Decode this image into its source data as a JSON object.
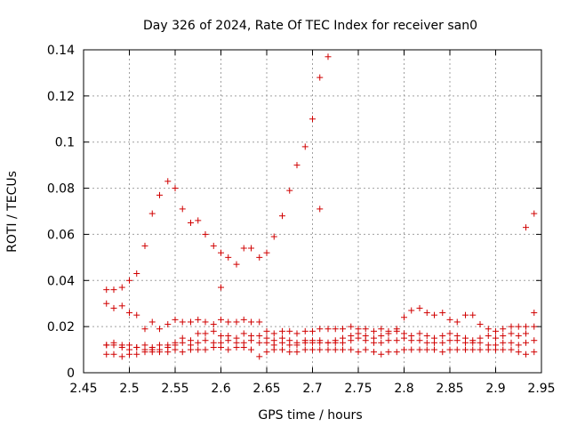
{
  "chart_data": {
    "type": "scatter",
    "title": "Day 326 of 2024, Rate Of TEC Index for receiver san0",
    "xlabel": "GPS time / hours",
    "ylabel": "ROTI / TECUs",
    "xlim": [
      2.45,
      2.95
    ],
    "ylim": [
      0,
      0.14
    ],
    "xticks": [
      "2.45",
      "2.5",
      "2.55",
      "2.6",
      "2.65",
      "2.7",
      "2.75",
      "2.8",
      "2.85",
      "2.9",
      "2.95"
    ],
    "yticks": [
      "0",
      "0.02",
      "0.04",
      "0.06",
      "0.08",
      "0.1",
      "0.12",
      "0.14"
    ],
    "grid": true,
    "marker": "+",
    "color": "#d00000",
    "series": [
      {
        "points": [
          [
            2.475,
            0.036
          ],
          [
            2.483,
            0.036
          ],
          [
            2.492,
            0.037
          ],
          [
            2.5,
            0.04
          ],
          [
            2.508,
            0.043
          ],
          [
            2.517,
            0.055
          ],
          [
            2.525,
            0.069
          ],
          [
            2.533,
            0.077
          ],
          [
            2.542,
            0.083
          ],
          [
            2.55,
            0.08
          ],
          [
            2.558,
            0.071
          ],
          [
            2.567,
            0.065
          ],
          [
            2.575,
            0.066
          ],
          [
            2.583,
            0.06
          ],
          [
            2.592,
            0.055
          ],
          [
            2.6,
            0.052
          ],
          [
            2.608,
            0.05
          ],
          [
            2.617,
            0.047
          ],
          [
            2.625,
            0.054
          ],
          [
            2.633,
            0.054
          ],
          [
            2.642,
            0.05
          ],
          [
            2.65,
            0.052
          ],
          [
            2.658,
            0.059
          ],
          [
            2.667,
            0.068
          ],
          [
            2.675,
            0.079
          ],
          [
            2.683,
            0.09
          ],
          [
            2.692,
            0.098
          ],
          [
            2.7,
            0.11
          ],
          [
            2.708,
            0.128
          ],
          [
            2.717,
            0.137
          ],
          [
            2.708,
            0.071
          ],
          [
            2.6,
            0.037
          ],
          [
            2.933,
            0.063
          ],
          [
            2.942,
            0.069
          ],
          [
            2.475,
            0.03
          ],
          [
            2.483,
            0.028
          ],
          [
            2.492,
            0.029
          ],
          [
            2.5,
            0.026
          ],
          [
            2.508,
            0.025
          ],
          [
            2.517,
            0.019
          ],
          [
            2.525,
            0.022
          ],
          [
            2.533,
            0.019
          ],
          [
            2.542,
            0.021
          ],
          [
            2.55,
            0.023
          ],
          [
            2.558,
            0.022
          ],
          [
            2.567,
            0.022
          ],
          [
            2.575,
            0.023
          ],
          [
            2.583,
            0.022
          ],
          [
            2.592,
            0.021
          ],
          [
            2.6,
            0.023
          ],
          [
            2.608,
            0.022
          ],
          [
            2.617,
            0.022
          ],
          [
            2.625,
            0.023
          ],
          [
            2.633,
            0.022
          ],
          [
            2.642,
            0.022
          ],
          [
            2.65,
            0.018
          ],
          [
            2.658,
            0.017
          ],
          [
            2.667,
            0.018
          ],
          [
            2.675,
            0.018
          ],
          [
            2.683,
            0.017
          ],
          [
            2.692,
            0.018
          ],
          [
            2.7,
            0.018
          ],
          [
            2.708,
            0.019
          ],
          [
            2.717,
            0.019
          ],
          [
            2.725,
            0.019
          ],
          [
            2.733,
            0.019
          ],
          [
            2.742,
            0.02
          ],
          [
            2.75,
            0.019
          ],
          [
            2.758,
            0.019
          ],
          [
            2.767,
            0.018
          ],
          [
            2.775,
            0.019
          ],
          [
            2.783,
            0.018
          ],
          [
            2.792,
            0.019
          ],
          [
            2.8,
            0.024
          ],
          [
            2.808,
            0.027
          ],
          [
            2.817,
            0.028
          ],
          [
            2.825,
            0.026
          ],
          [
            2.833,
            0.025
          ],
          [
            2.842,
            0.026
          ],
          [
            2.85,
            0.023
          ],
          [
            2.858,
            0.022
          ],
          [
            2.867,
            0.025
          ],
          [
            2.875,
            0.025
          ],
          [
            2.883,
            0.021
          ],
          [
            2.892,
            0.019
          ],
          [
            2.9,
            0.018
          ],
          [
            2.908,
            0.019
          ],
          [
            2.917,
            0.02
          ],
          [
            2.925,
            0.02
          ],
          [
            2.933,
            0.02
          ],
          [
            2.942,
            0.026
          ],
          [
            2.475,
            0.012
          ],
          [
            2.483,
            0.013
          ],
          [
            2.492,
            0.011
          ],
          [
            2.5,
            0.012
          ],
          [
            2.508,
            0.011
          ],
          [
            2.517,
            0.01
          ],
          [
            2.525,
            0.01
          ],
          [
            2.533,
            0.01
          ],
          [
            2.542,
            0.011
          ],
          [
            2.55,
            0.013
          ],
          [
            2.558,
            0.015
          ],
          [
            2.567,
            0.014
          ],
          [
            2.575,
            0.017
          ],
          [
            2.583,
            0.017
          ],
          [
            2.592,
            0.018
          ],
          [
            2.6,
            0.016
          ],
          [
            2.608,
            0.016
          ],
          [
            2.617,
            0.015
          ],
          [
            2.625,
            0.017
          ],
          [
            2.633,
            0.016
          ],
          [
            2.642,
            0.016
          ],
          [
            2.65,
            0.015
          ],
          [
            2.658,
            0.014
          ],
          [
            2.667,
            0.015
          ],
          [
            2.675,
            0.014
          ],
          [
            2.683,
            0.013
          ],
          [
            2.692,
            0.014
          ],
          [
            2.7,
            0.014
          ],
          [
            2.708,
            0.013
          ],
          [
            2.717,
            0.013
          ],
          [
            2.725,
            0.014
          ],
          [
            2.733,
            0.015
          ],
          [
            2.742,
            0.016
          ],
          [
            2.75,
            0.017
          ],
          [
            2.758,
            0.016
          ],
          [
            2.767,
            0.015
          ],
          [
            2.775,
            0.016
          ],
          [
            2.783,
            0.017
          ],
          [
            2.792,
            0.018
          ],
          [
            2.8,
            0.017
          ],
          [
            2.808,
            0.016
          ],
          [
            2.817,
            0.017
          ],
          [
            2.825,
            0.016
          ],
          [
            2.833,
            0.015
          ],
          [
            2.842,
            0.016
          ],
          [
            2.85,
            0.017
          ],
          [
            2.858,
            0.016
          ],
          [
            2.867,
            0.015
          ],
          [
            2.875,
            0.014
          ],
          [
            2.883,
            0.015
          ],
          [
            2.892,
            0.016
          ],
          [
            2.9,
            0.015
          ],
          [
            2.908,
            0.016
          ],
          [
            2.917,
            0.017
          ],
          [
            2.925,
            0.016
          ],
          [
            2.933,
            0.017
          ],
          [
            2.942,
            0.02
          ],
          [
            2.475,
            0.012
          ],
          [
            2.483,
            0.012
          ],
          [
            2.492,
            0.012
          ],
          [
            2.5,
            0.01
          ],
          [
            2.508,
            0.011
          ],
          [
            2.517,
            0.012
          ],
          [
            2.525,
            0.011
          ],
          [
            2.533,
            0.012
          ],
          [
            2.542,
            0.012
          ],
          [
            2.55,
            0.012
          ],
          [
            2.558,
            0.013
          ],
          [
            2.567,
            0.012
          ],
          [
            2.575,
            0.013
          ],
          [
            2.583,
            0.014
          ],
          [
            2.592,
            0.013
          ],
          [
            2.6,
            0.013
          ],
          [
            2.608,
            0.014
          ],
          [
            2.617,
            0.013
          ],
          [
            2.625,
            0.013
          ],
          [
            2.633,
            0.014
          ],
          [
            2.642,
            0.013
          ],
          [
            2.65,
            0.013
          ],
          [
            2.658,
            0.012
          ],
          [
            2.667,
            0.013
          ],
          [
            2.675,
            0.012
          ],
          [
            2.683,
            0.012
          ],
          [
            2.692,
            0.013
          ],
          [
            2.7,
            0.013
          ],
          [
            2.708,
            0.014
          ],
          [
            2.717,
            0.013
          ],
          [
            2.725,
            0.013
          ],
          [
            2.733,
            0.013
          ],
          [
            2.742,
            0.014
          ],
          [
            2.75,
            0.015
          ],
          [
            2.758,
            0.014
          ],
          [
            2.767,
            0.013
          ],
          [
            2.775,
            0.013
          ],
          [
            2.783,
            0.014
          ],
          [
            2.792,
            0.014
          ],
          [
            2.8,
            0.015
          ],
          [
            2.808,
            0.014
          ],
          [
            2.817,
            0.014
          ],
          [
            2.825,
            0.013
          ],
          [
            2.833,
            0.013
          ],
          [
            2.842,
            0.013
          ],
          [
            2.85,
            0.014
          ],
          [
            2.858,
            0.014
          ],
          [
            2.867,
            0.013
          ],
          [
            2.875,
            0.013
          ],
          [
            2.883,
            0.013
          ],
          [
            2.892,
            0.012
          ],
          [
            2.9,
            0.012
          ],
          [
            2.908,
            0.013
          ],
          [
            2.917,
            0.013
          ],
          [
            2.925,
            0.012
          ],
          [
            2.933,
            0.013
          ],
          [
            2.942,
            0.014
          ],
          [
            2.475,
            0.008
          ],
          [
            2.483,
            0.008
          ],
          [
            2.492,
            0.007
          ],
          [
            2.5,
            0.008
          ],
          [
            2.508,
            0.008
          ],
          [
            2.517,
            0.009
          ],
          [
            2.525,
            0.009
          ],
          [
            2.533,
            0.009
          ],
          [
            2.542,
            0.009
          ],
          [
            2.55,
            0.01
          ],
          [
            2.558,
            0.009
          ],
          [
            2.567,
            0.01
          ],
          [
            2.575,
            0.01
          ],
          [
            2.583,
            0.01
          ],
          [
            2.592,
            0.011
          ],
          [
            2.6,
            0.011
          ],
          [
            2.608,
            0.01
          ],
          [
            2.617,
            0.011
          ],
          [
            2.625,
            0.011
          ],
          [
            2.633,
            0.01
          ],
          [
            2.642,
            0.007
          ],
          [
            2.65,
            0.009
          ],
          [
            2.658,
            0.01
          ],
          [
            2.667,
            0.01
          ],
          [
            2.675,
            0.009
          ],
          [
            2.683,
            0.009
          ],
          [
            2.692,
            0.01
          ],
          [
            2.7,
            0.01
          ],
          [
            2.708,
            0.01
          ],
          [
            2.717,
            0.01
          ],
          [
            2.725,
            0.01
          ],
          [
            2.733,
            0.01
          ],
          [
            2.742,
            0.01
          ],
          [
            2.75,
            0.009
          ],
          [
            2.758,
            0.01
          ],
          [
            2.767,
            0.009
          ],
          [
            2.775,
            0.008
          ],
          [
            2.783,
            0.009
          ],
          [
            2.792,
            0.009
          ],
          [
            2.8,
            0.01
          ],
          [
            2.808,
            0.01
          ],
          [
            2.817,
            0.01
          ],
          [
            2.825,
            0.01
          ],
          [
            2.833,
            0.01
          ],
          [
            2.842,
            0.009
          ],
          [
            2.85,
            0.01
          ],
          [
            2.858,
            0.01
          ],
          [
            2.867,
            0.01
          ],
          [
            2.875,
            0.01
          ],
          [
            2.883,
            0.01
          ],
          [
            2.892,
            0.01
          ],
          [
            2.9,
            0.01
          ],
          [
            2.908,
            0.01
          ],
          [
            2.917,
            0.01
          ],
          [
            2.925,
            0.009
          ],
          [
            2.933,
            0.008
          ],
          [
            2.942,
            0.009
          ]
        ]
      }
    ]
  }
}
